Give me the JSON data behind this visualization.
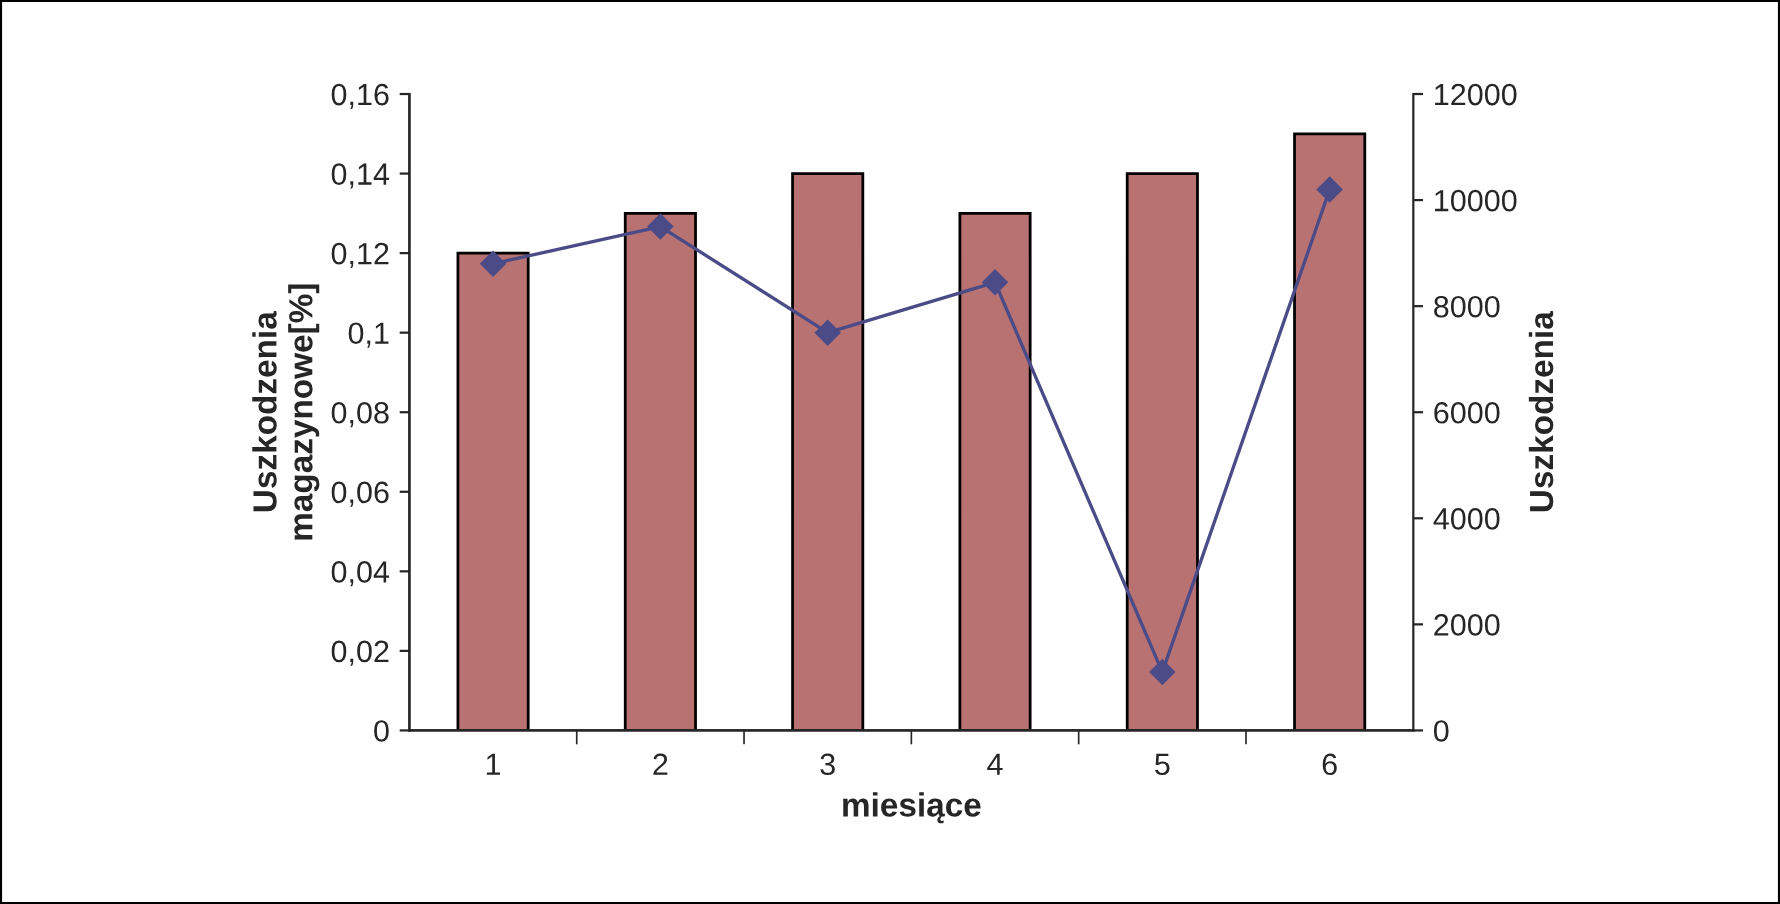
{
  "chart_data": {
    "type": "bar",
    "xlabel": "miesiące",
    "ylabel": "Uszkodzenia\nmagazynowe[%]",
    "y2label": "Uszkodzenia",
    "categories": [
      "1",
      "2",
      "3",
      "4",
      "5",
      "6"
    ],
    "series": [
      {
        "color": "#b87272",
        "values": [
          0.12,
          0.13,
          0.14,
          0.13,
          0.14,
          0.15
        ]
      },
      {
        "type": "line",
        "axis": "y2",
        "color": "#4b4b88",
        "marker": "diamond",
        "values": [
          8800,
          9500,
          7500,
          8450,
          1100,
          10200
        ]
      }
    ],
    "ylim": [
      0,
      0.16
    ],
    "yticks": [
      {
        "value": 0,
        "label": "0"
      },
      {
        "value": 0.02,
        "label": "0,02"
      },
      {
        "value": 0.04,
        "label": "0,04"
      },
      {
        "value": 0.06,
        "label": "0,06"
      },
      {
        "value": 0.08,
        "label": "0,08"
      },
      {
        "value": 0.1,
        "label": "0,1"
      },
      {
        "value": 0.12,
        "label": "0,12"
      },
      {
        "value": 0.14,
        "label": "0,14"
      },
      {
        "value": 0.16,
        "label": "0,16"
      }
    ],
    "y2lim": [
      0,
      12000
    ],
    "y2ticks": [
      0,
      2000,
      4000,
      6000,
      8000,
      10000,
      12000
    ],
    "grid": false,
    "legend": false
  }
}
